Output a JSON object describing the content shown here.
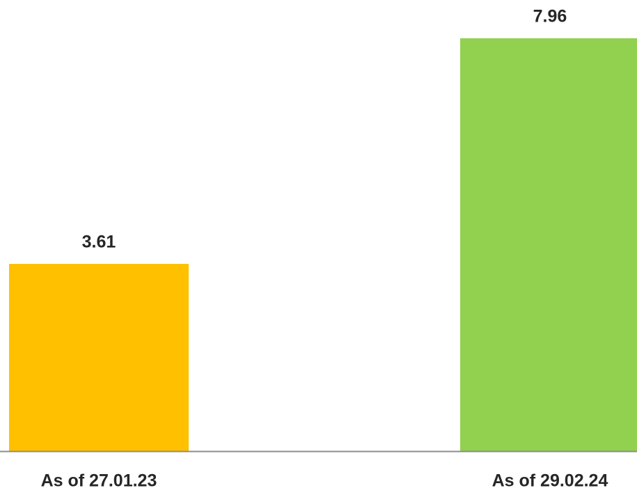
{
  "chart_data": {
    "type": "bar",
    "categories": [
      "As of 27.01.23",
      "As of 29.02.24"
    ],
    "values": [
      3.61,
      7.96
    ],
    "colors": [
      "#ffc000",
      "#92d050"
    ]
  }
}
